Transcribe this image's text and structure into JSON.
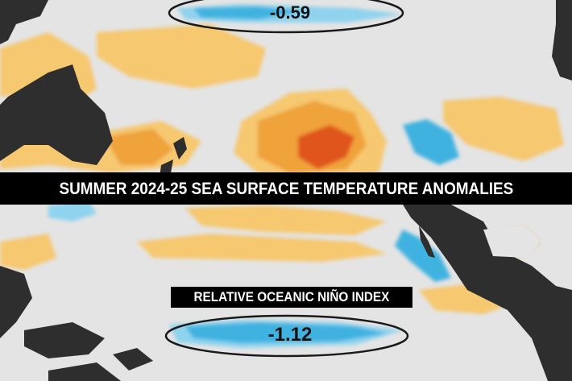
{
  "title": "SUMMER 2024-25 SEA SURFACE TEMPERATURE ANOMALIES",
  "index_label": "RELATIVE OCEANIC NIÑO INDEX",
  "regions": {
    "top_value": "-0.59",
    "bottom_value": "-1.12"
  },
  "colors": {
    "ocean": "#e4e4e4",
    "land": "#2e2e2e",
    "warm_light": "#f6c870",
    "warm": "#f0a23a",
    "warm_strong": "#e0541e",
    "cool_light": "#8fd3ee",
    "cool": "#3fb2e0"
  }
}
